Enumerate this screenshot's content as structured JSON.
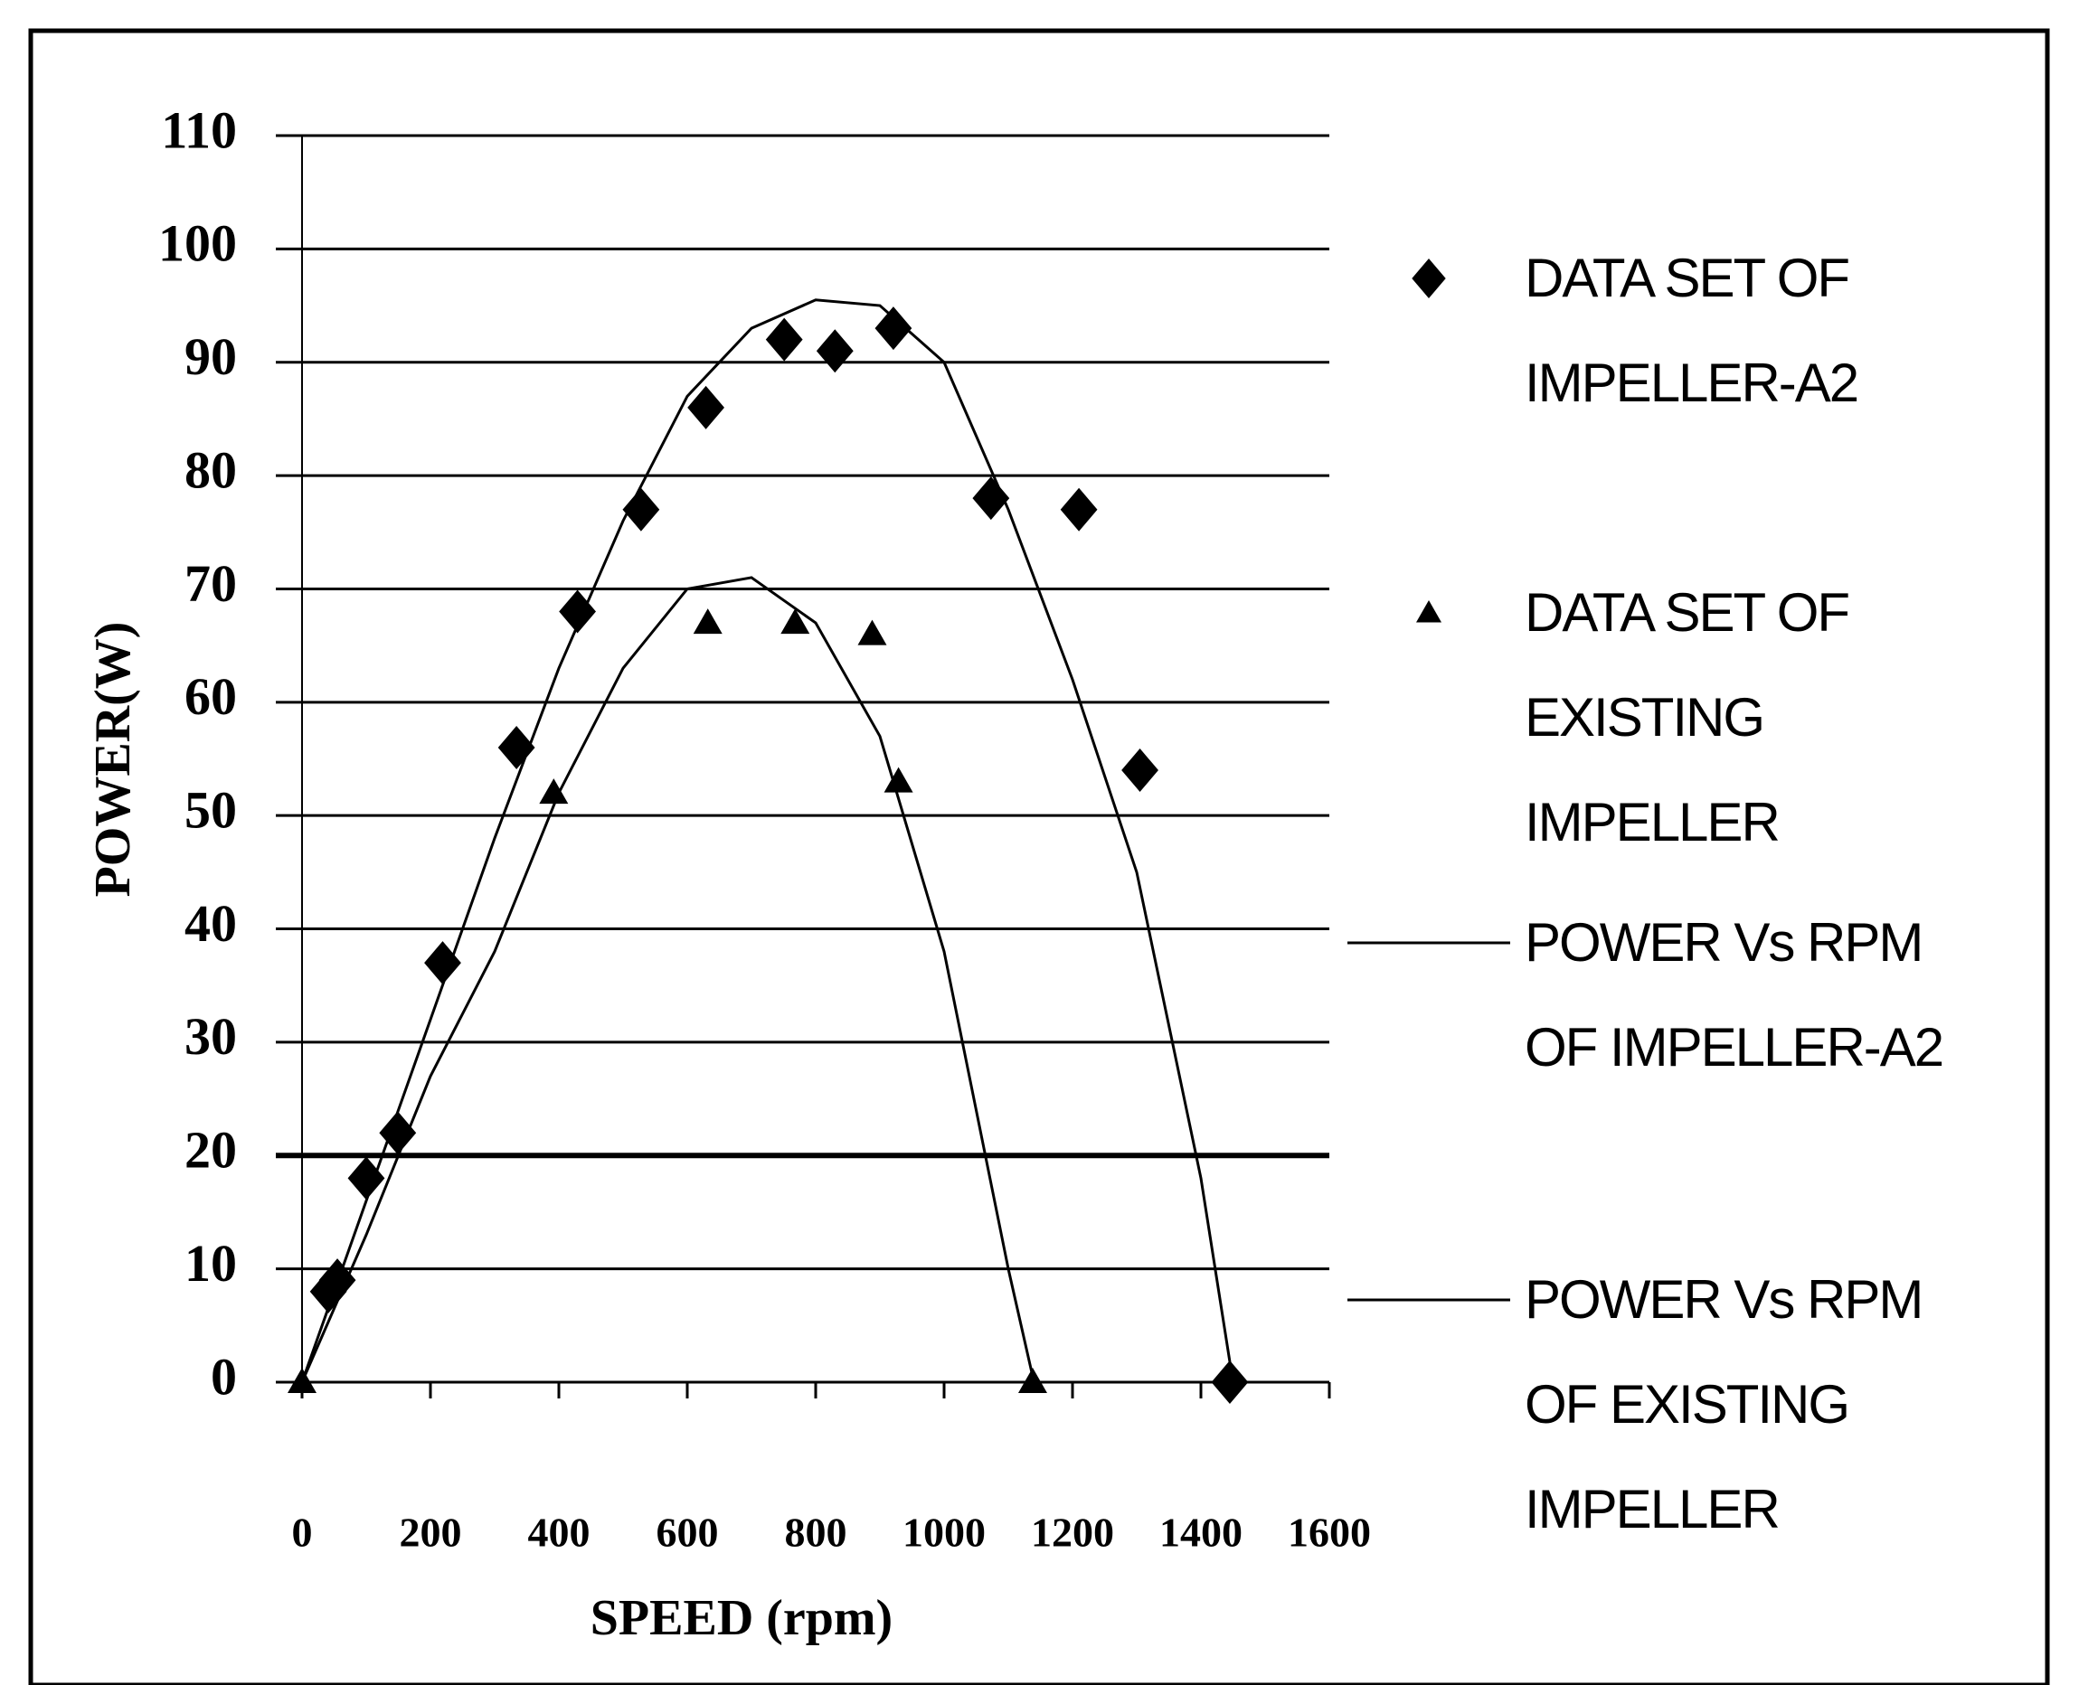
{
  "chart_data": {
    "type": "scatter",
    "xlabel": "SPEED (rpm)",
    "ylabel": "POWER(W)",
    "xlim": [
      0,
      1600
    ],
    "ylim": [
      0,
      110
    ],
    "xticks": [
      0,
      200,
      400,
      600,
      800,
      1000,
      1200,
      1400,
      1600
    ],
    "yticks": [
      0,
      10,
      20,
      30,
      40,
      50,
      60,
      70,
      80,
      90,
      100,
      110
    ],
    "grid": true,
    "legend": "right",
    "series": [
      {
        "name": "DATA SET OF IMPELLER-A2",
        "color": "#000000",
        "mode": "markers",
        "marker": "diamond",
        "x": [
          41,
          55,
          100,
          149,
          219,
          334,
          429,
          528,
          629,
          751,
          830,
          921,
          1073,
          1210,
          1305,
          1445
        ],
        "values": [
          8,
          9,
          18,
          22,
          37,
          56,
          68,
          77,
          86,
          92,
          91,
          93,
          78,
          77,
          54,
          0
        ]
      },
      {
        "name": "DATA SET OF EXISTING IMPELLER",
        "color": "#000000",
        "mode": "markers",
        "marker": "triangle",
        "x": [
          0,
          392,
          632,
          768,
          888,
          929,
          1138
        ],
        "values": [
          0,
          52,
          67,
          67,
          66,
          53,
          0
        ]
      },
      {
        "name": "POWER Vs RPM OF IMPELLER-A2",
        "color": "#000000",
        "mode": "line",
        "x": [
          0,
          100,
          200,
          300,
          400,
          500,
          600,
          700,
          800,
          900,
          1000,
          1100,
          1200,
          1300,
          1400,
          1450
        ],
        "values": [
          0,
          16,
          32,
          48,
          63,
          76,
          87,
          93,
          95.5,
          95,
          90,
          77,
          62,
          45,
          18,
          0
        ]
      },
      {
        "name": "POWER Vs RPM OF EXISTING IMPELLER",
        "color": "#000000",
        "mode": "line",
        "x": [
          0,
          100,
          200,
          300,
          400,
          500,
          600,
          700,
          800,
          900,
          1000,
          1100,
          1140
        ],
        "values": [
          0,
          13,
          27,
          38,
          52,
          63,
          70,
          71,
          67,
          57,
          38,
          10,
          0
        ]
      }
    ]
  }
}
